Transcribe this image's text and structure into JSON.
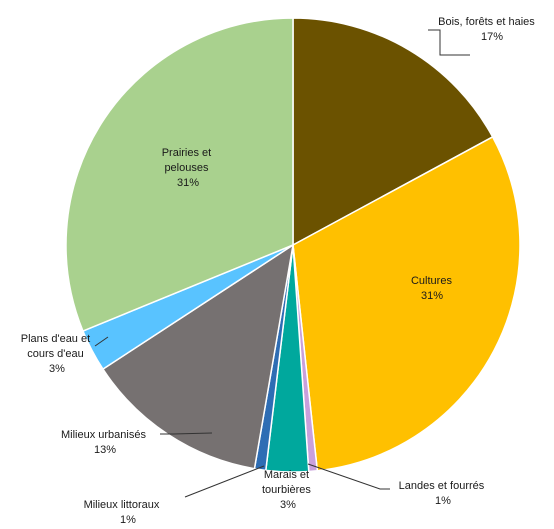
{
  "chart_data": {
    "type": "pie",
    "title": "",
    "slices": [
      {
        "label": "Bois, forêts et haies",
        "value": 17,
        "display": "17%",
        "color": "#6b5200"
      },
      {
        "label": "Cultures",
        "value": 31,
        "display": "31%",
        "color": "#ffc000"
      },
      {
        "label": "Landes et fourrés",
        "value": 0.6,
        "display": "1%",
        "color": "#c9a0dc"
      },
      {
        "label": "Marais et tourbières",
        "value": 3,
        "display": "3%",
        "color": "#00a89d"
      },
      {
        "label": "Milieux littoraux",
        "value": 0.8,
        "display": "1%",
        "color": "#2e6db4"
      },
      {
        "label": "Milieux urbanisés",
        "value": 13,
        "display": "13%",
        "color": "#767171"
      },
      {
        "label": "Plans d'eau et cours d'eau",
        "value": 3,
        "display": "3%",
        "color": "#59c3ff"
      },
      {
        "label": "Prairies et pelouses",
        "value": 31,
        "display": "31%",
        "color": "#a9d18e"
      }
    ]
  }
}
